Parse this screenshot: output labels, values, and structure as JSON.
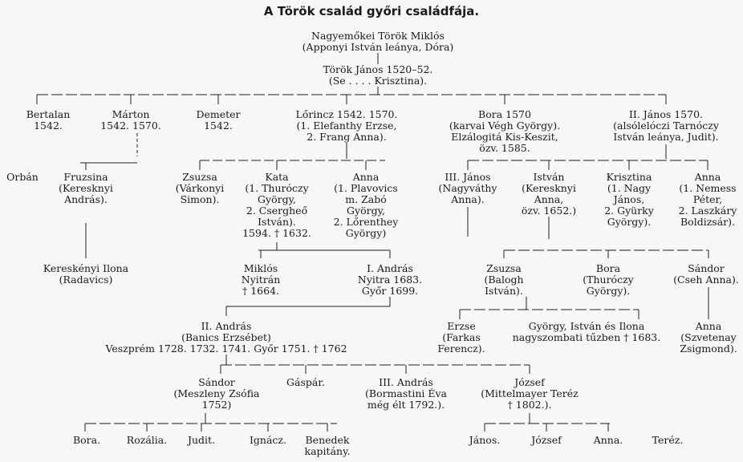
{
  "title": "A Török család győri családfája.",
  "nodes": {
    "miklos": "Nagyemőkei Török Miklós\n(Apponyi István leánya, Dóra)",
    "janos": "Török János 1520–52.\n(Se . . . . Krisztina).",
    "bertalan": "Bertalan\n1542.",
    "marton": "Márton\n1542. 1570.",
    "demeter": "Demeter\n1542.",
    "lorincz": "Lőrincz 1542. 1570.\n(1. Elefanthy Erzse,\n2. Frang Anna).",
    "bora1": "Bora 1570\n(karvai Végh György).\nElzálogitá Kis-Keszit,\nözv. 1585.",
    "janos2": "II. János 1570.\n(alsólelóczi Tarnóczy\nIstván leánya, Judit).",
    "orban": "Orbán",
    "fruzsina": "Fruzsina\n(Keresknyi\nAndrás).",
    "zsuzsa1": "Zsuzsa\n(Várkonyi\nSimon).",
    "kata": "Kata\n(1. Thuróczy\nGyörgy,\n2. Csergheő\nIstván).\n1594. † 1632.",
    "anna1": "Anna\n(1. Plavovics\nm. Zabó\nGyörgy,\n2. Lőrenthey\nGyörgy)",
    "janos3": "III. János\n(Nagyváthy\nAnna).",
    "istvan": "István\n(Keresknyi\nAnna,\nözv. 1652.)",
    "krisztina": "Krisztina\n(1. Nagy\nJános,\n2. Gyürky\nGyörgy).",
    "anna2": "Anna\n(1. Nemess\nPéter,\n2. Laszkáry\nBoldizsár).",
    "ilona1": "Kereskényi Ilona\n(Radavics)",
    "miklos2": "Miklós\nNyitrán\n† 1664.",
    "andras1": "I. András\nNyitra 1683.\nGyőr 1699.",
    "zsuzsa2": "Zsuzsa\n(Balogh\nIstván).",
    "bora2": "Bora\n(Thuróczy\nGyörgy).",
    "sandor1": "Sándor\n(Cseh Anna).",
    "andras2": "II. András\n(Banics Erzsébet)\nVeszprém 1728. 1732. 1741. Győr 1751. † 1762",
    "erzse": "Erzse\n(Farkas\nFerencz).",
    "gyorgy": "György, István és Ilona\nnagyszombati tűzben † 1683.",
    "anna3": "Anna\n(Szvetenay\nZsigmond).",
    "sandor2": "Sándor\n(Meszleny Zsófia\n1752)",
    "gaspar": "Gáspár.",
    "andras3": "III. András\n(Bormastini Éva\nmég élt 1792.).",
    "jozsef1": "József\n(Mittelmayer Teréz\n† 1802.).",
    "bora3": "Bora.",
    "rozalia": "Rozália.",
    "judit": "Judit.",
    "ignacz": "Ignácz.",
    "benedek": "Benedek\nkapitány.",
    "janos4": "János.",
    "jozsef2": "József",
    "anna4": "Anna.",
    "terez": "Teréz."
  }
}
